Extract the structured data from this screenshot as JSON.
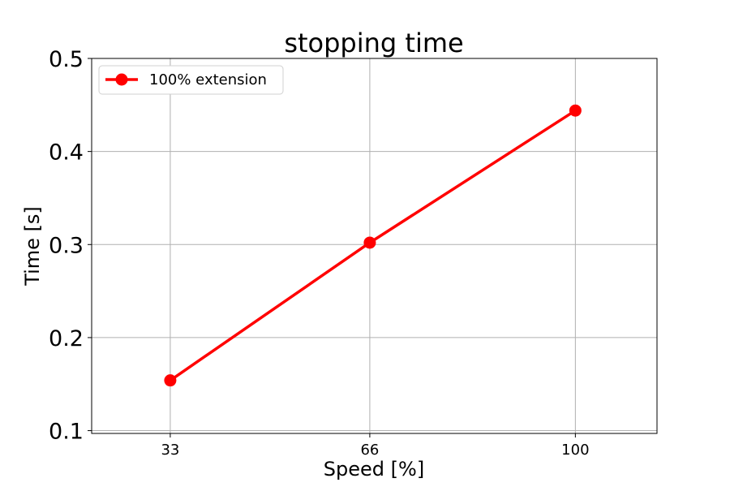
{
  "chart_data": {
    "type": "line",
    "title": "stopping time",
    "xlabel": "Speed [%]",
    "ylabel": "Time [s]",
    "x": [
      33,
      66,
      100
    ],
    "xticks": [
      "33",
      "66",
      "100"
    ],
    "yticks": [
      0.1,
      0.2,
      0.3,
      0.4,
      0.5
    ],
    "ytick_labels": [
      "0.1",
      "0.2",
      "0.3",
      "0.4",
      "0.5"
    ],
    "xlim": [
      20,
      113.5
    ],
    "ylim": [
      0.097,
      0.5
    ],
    "grid": true,
    "legend_position": "top-left",
    "series": [
      {
        "name": "100% extension",
        "x": [
          33,
          66,
          100
        ],
        "values": [
          0.154,
          0.302,
          0.444
        ],
        "color": "#ff0000",
        "marker": "circle"
      }
    ]
  }
}
